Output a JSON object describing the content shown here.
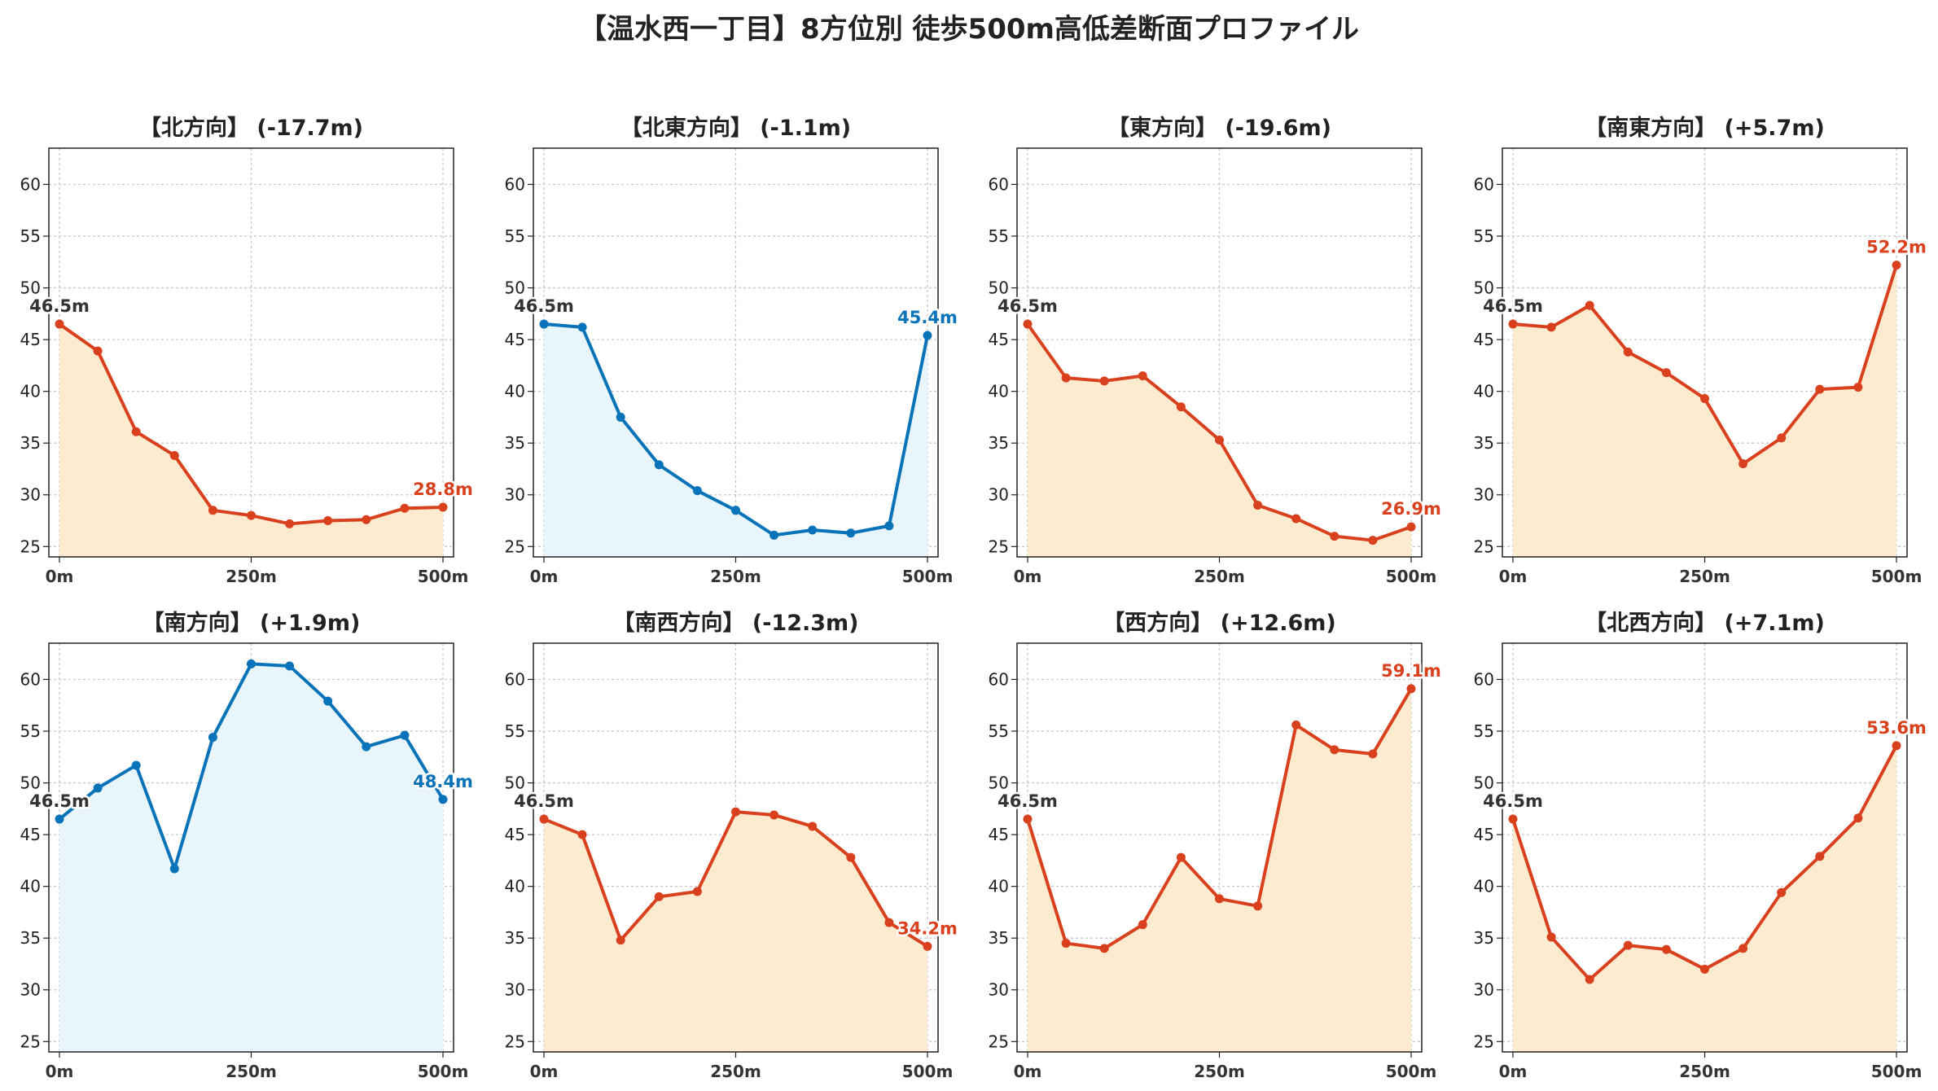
{
  "suptitle": "【温水西一丁目】8方位別 徒歩500m高低差断面プロファイル",
  "colors": {
    "down": "#d9411e",
    "down_fill": "#fdebd0",
    "up": "#0873b9",
    "up_fill": "#e8f6fc",
    "start_label": "#333333"
  },
  "chart_data": [
    {
      "type": "area",
      "title": "【北方向】 (-17.7m)",
      "line_color": "#d9411e",
      "fill_color": "#fdebd0",
      "x": [
        0,
        50,
        100,
        150,
        200,
        250,
        300,
        350,
        400,
        450,
        500
      ],
      "y": [
        46.5,
        43.9,
        36.1,
        33.8,
        28.5,
        28.0,
        27.2,
        27.5,
        27.6,
        28.7,
        28.8
      ],
      "start_label": "46.5m",
      "end_label": "28.8m",
      "xticks": [
        "0m",
        "250m",
        "500m"
      ],
      "ylim": [
        24,
        63.5
      ],
      "yticks": [
        25,
        30,
        35,
        40,
        45,
        50,
        55,
        60
      ],
      "grid": true
    },
    {
      "type": "area",
      "title": "【北東方向】 (-1.1m)",
      "line_color": "#0873b9",
      "fill_color": "#e8f6fc",
      "x": [
        0,
        50,
        100,
        150,
        200,
        250,
        300,
        350,
        400,
        450,
        500
      ],
      "y": [
        46.5,
        46.2,
        37.5,
        32.9,
        30.4,
        28.5,
        26.1,
        26.6,
        26.3,
        27.0,
        45.4
      ],
      "start_label": "46.5m",
      "end_label": "45.4m",
      "xticks": [
        "0m",
        "250m",
        "500m"
      ],
      "ylim": [
        24,
        63.5
      ],
      "yticks": [
        25,
        30,
        35,
        40,
        45,
        50,
        55,
        60
      ],
      "grid": true
    },
    {
      "type": "area",
      "title": "【東方向】 (-19.6m)",
      "line_color": "#d9411e",
      "fill_color": "#fdebd0",
      "x": [
        0,
        50,
        100,
        150,
        200,
        250,
        300,
        350,
        400,
        450,
        500
      ],
      "y": [
        46.5,
        41.3,
        41.0,
        41.5,
        38.5,
        35.3,
        29.0,
        27.7,
        26.0,
        25.6,
        26.9
      ],
      "start_label": "46.5m",
      "end_label": "26.9m",
      "xticks": [
        "0m",
        "250m",
        "500m"
      ],
      "ylim": [
        24,
        63.5
      ],
      "yticks": [
        25,
        30,
        35,
        40,
        45,
        50,
        55,
        60
      ],
      "grid": true
    },
    {
      "type": "area",
      "title": "【南東方向】 (+5.7m)",
      "line_color": "#d9411e",
      "fill_color": "#fdebd0",
      "x": [
        0,
        50,
        100,
        150,
        200,
        250,
        300,
        350,
        400,
        450,
        500
      ],
      "y": [
        46.5,
        46.2,
        48.3,
        43.8,
        41.8,
        39.3,
        33.0,
        35.5,
        40.2,
        40.4,
        52.2
      ],
      "start_label": "46.5m",
      "end_label": "52.2m",
      "xticks": [
        "0m",
        "250m",
        "500m"
      ],
      "ylim": [
        24,
        63.5
      ],
      "yticks": [
        25,
        30,
        35,
        40,
        45,
        50,
        55,
        60
      ],
      "grid": true
    },
    {
      "type": "area",
      "title": "【南方向】 (+1.9m)",
      "line_color": "#0873b9",
      "fill_color": "#e8f6fc",
      "x": [
        0,
        50,
        100,
        150,
        200,
        250,
        300,
        350,
        400,
        450,
        500
      ],
      "y": [
        46.5,
        49.5,
        51.7,
        41.7,
        54.4,
        61.5,
        61.3,
        57.9,
        53.5,
        54.6,
        48.4
      ],
      "start_label": "46.5m",
      "end_label": "48.4m",
      "xticks": [
        "0m",
        "250m",
        "500m"
      ],
      "ylim": [
        24,
        63.5
      ],
      "yticks": [
        25,
        30,
        35,
        40,
        45,
        50,
        55,
        60
      ],
      "grid": true
    },
    {
      "type": "area",
      "title": "【南西方向】 (-12.3m)",
      "line_color": "#d9411e",
      "fill_color": "#fdebd0",
      "x": [
        0,
        50,
        100,
        150,
        200,
        250,
        300,
        350,
        400,
        450,
        500
      ],
      "y": [
        46.5,
        45.0,
        34.8,
        39.0,
        39.5,
        47.2,
        46.9,
        45.8,
        42.8,
        36.5,
        34.2
      ],
      "start_label": "46.5m",
      "end_label": "34.2m",
      "xticks": [
        "0m",
        "250m",
        "500m"
      ],
      "ylim": [
        24,
        63.5
      ],
      "yticks": [
        25,
        30,
        35,
        40,
        45,
        50,
        55,
        60
      ],
      "grid": true
    },
    {
      "type": "area",
      "title": "【西方向】 (+12.6m)",
      "line_color": "#d9411e",
      "fill_color": "#fdebd0",
      "x": [
        0,
        50,
        100,
        150,
        200,
        250,
        300,
        350,
        400,
        450,
        500
      ],
      "y": [
        46.5,
        34.5,
        34.0,
        36.3,
        42.8,
        38.8,
        38.1,
        55.6,
        53.2,
        52.8,
        59.1
      ],
      "start_label": "46.5m",
      "end_label": "59.1m",
      "xticks": [
        "0m",
        "250m",
        "500m"
      ],
      "ylim": [
        24,
        63.5
      ],
      "yticks": [
        25,
        30,
        35,
        40,
        45,
        50,
        55,
        60
      ],
      "grid": true
    },
    {
      "type": "area",
      "title": "【北西方向】 (+7.1m)",
      "line_color": "#d9411e",
      "fill_color": "#fdebd0",
      "x": [
        0,
        50,
        100,
        150,
        200,
        250,
        300,
        350,
        400,
        450,
        500
      ],
      "y": [
        46.5,
        35.1,
        31.0,
        34.3,
        33.9,
        32.0,
        34.0,
        39.4,
        42.9,
        46.6,
        53.6
      ],
      "start_label": "46.5m",
      "end_label": "53.6m",
      "xticks": [
        "0m",
        "250m",
        "500m"
      ],
      "ylim": [
        24,
        63.5
      ],
      "yticks": [
        25,
        30,
        35,
        40,
        45,
        50,
        55,
        60
      ],
      "grid": true
    }
  ]
}
